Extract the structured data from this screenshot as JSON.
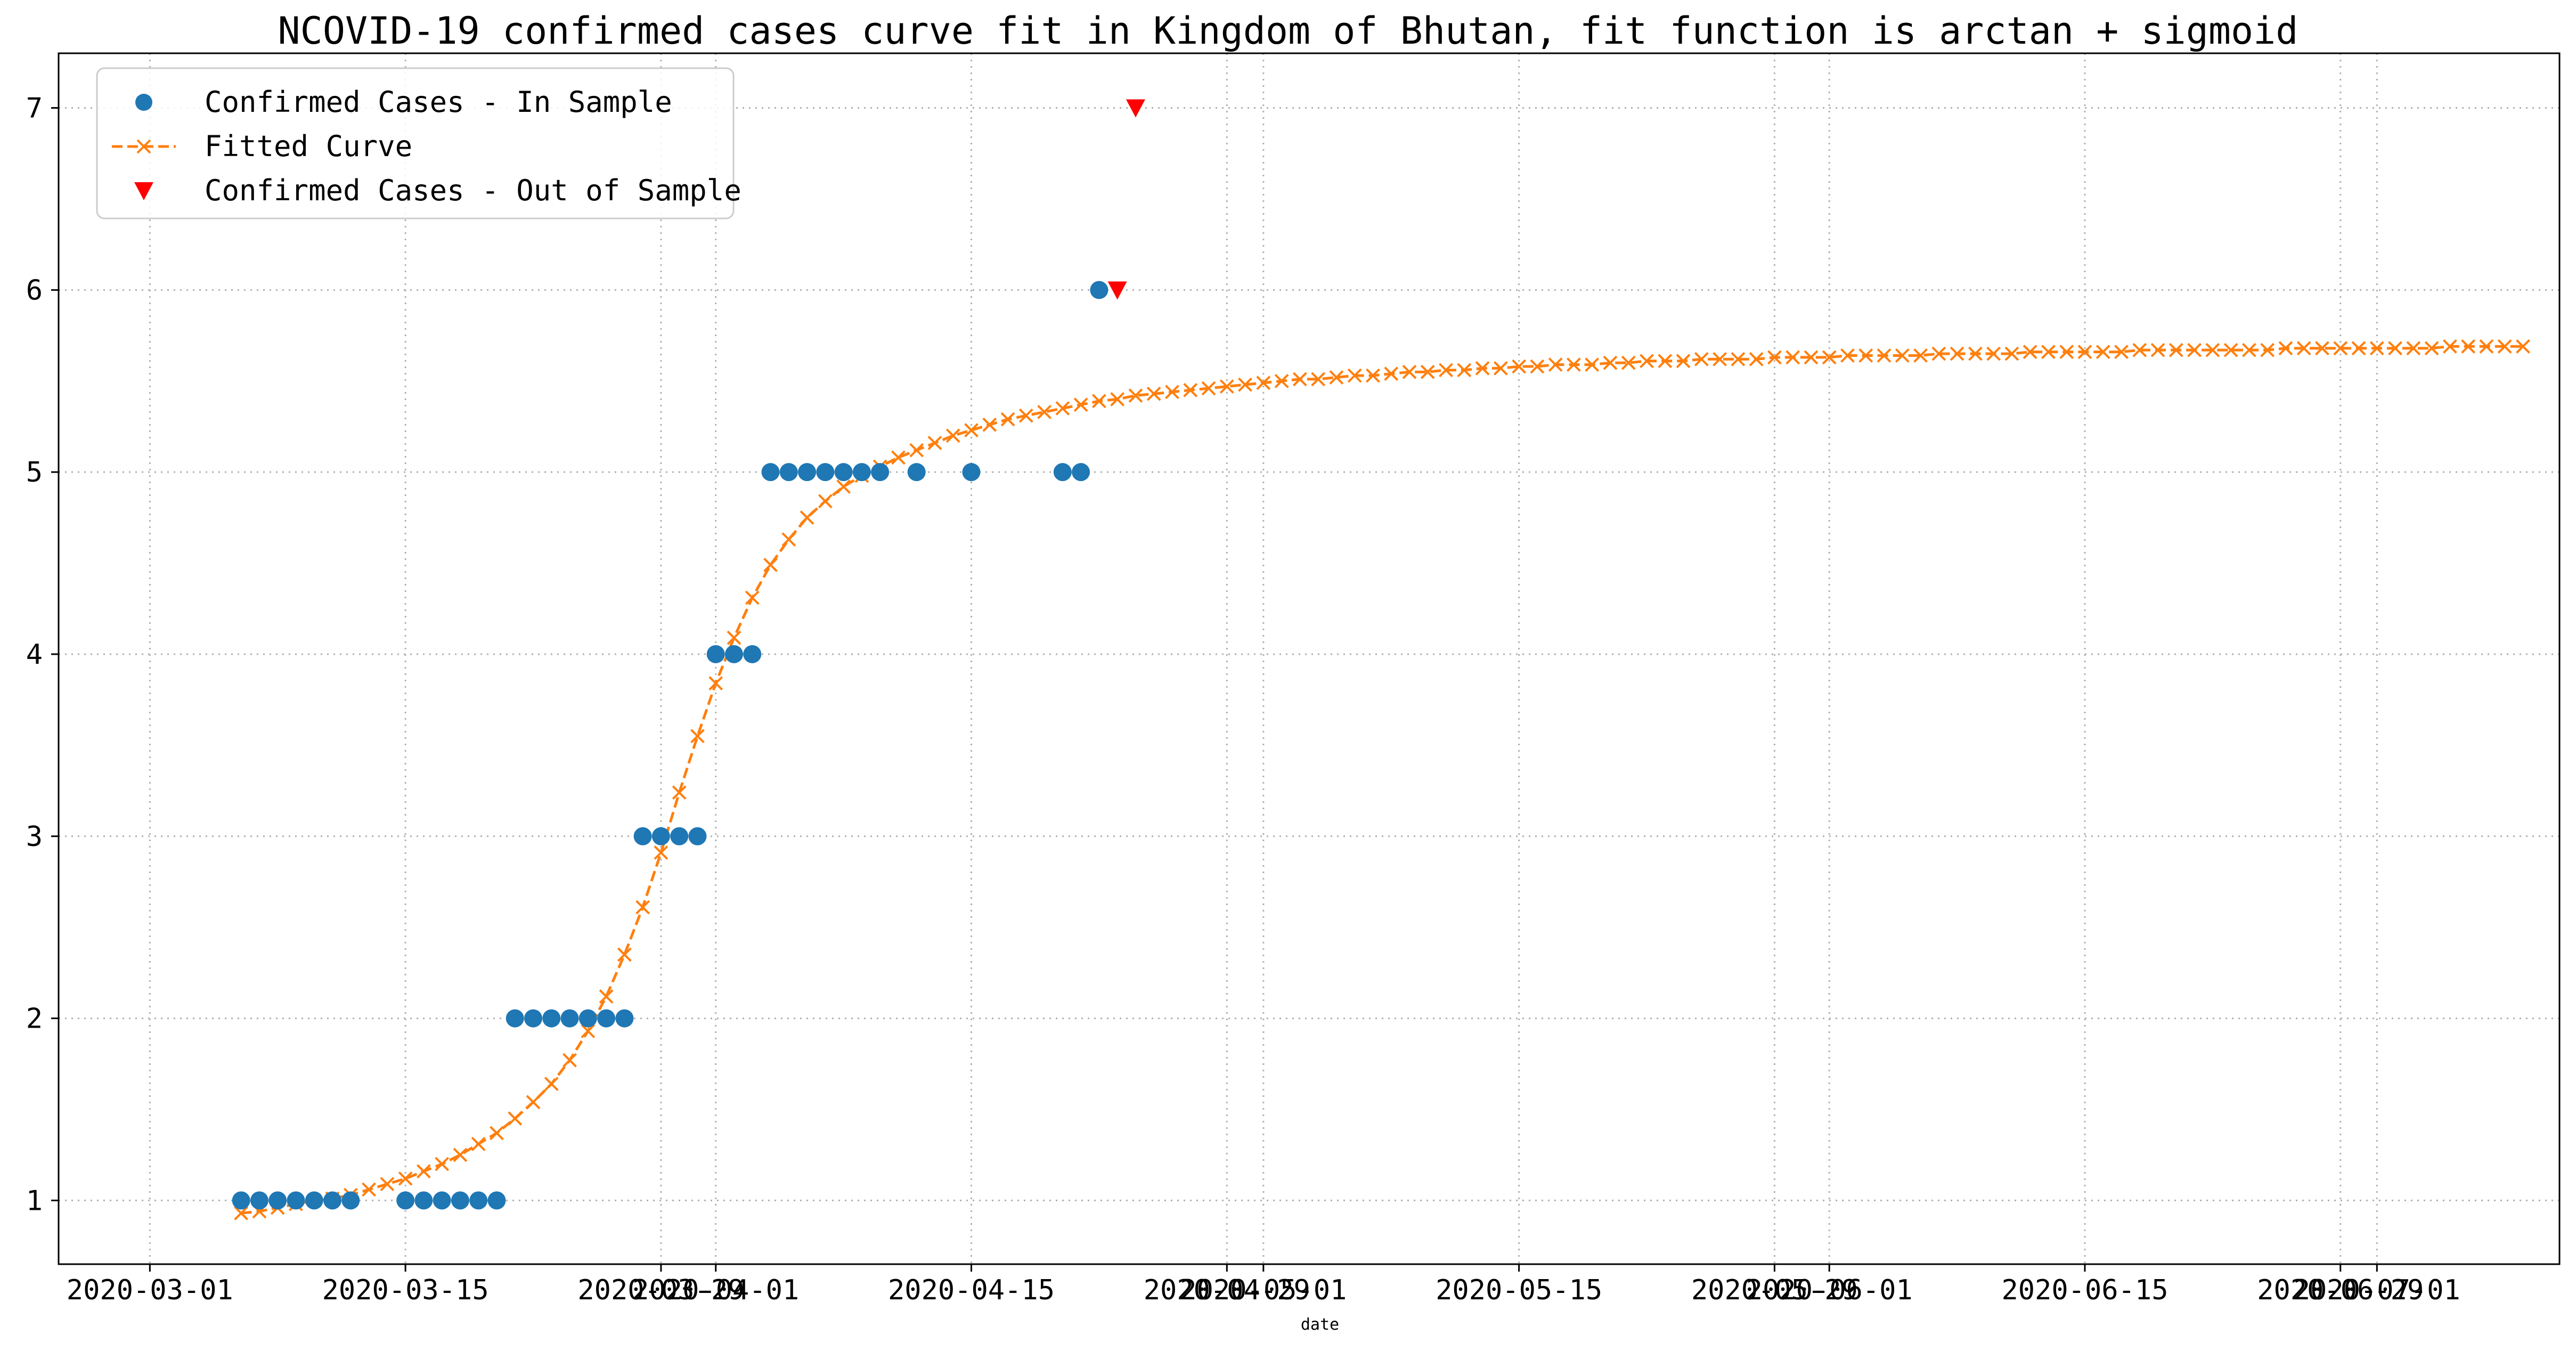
{
  "chart_data": {
    "type": "scatter",
    "title": "NCOVID-19 confirmed cases curve fit in Kingdom of Bhutan, fit function is arctan + sigmoid",
    "xlabel": "date",
    "ylabel": "",
    "x_axis_type": "date",
    "xlim": [
      "2020-02-25",
      "2020-07-11"
    ],
    "ylim": [
      0.65,
      7.3
    ],
    "grid": true,
    "legend_position": "top-left",
    "x_ticks": [
      "2020-03-01",
      "2020-03-15",
      "2020-03-29",
      "2020-04-01",
      "2020-04-15",
      "2020-04-29",
      "2020-05-01",
      "2020-05-15",
      "2020-05-29",
      "2020-06-01",
      "2020-06-15",
      "2020-06-29",
      "2020-07-01"
    ],
    "y_ticks": [
      1,
      2,
      3,
      4,
      5,
      6,
      7
    ],
    "series": [
      {
        "name": "Confirmed Cases - In Sample",
        "style": "markers",
        "marker": "circle",
        "color": "#1f77b4",
        "points": [
          [
            "2020-03-06",
            1
          ],
          [
            "2020-03-07",
            1
          ],
          [
            "2020-03-08",
            1
          ],
          [
            "2020-03-09",
            1
          ],
          [
            "2020-03-10",
            1
          ],
          [
            "2020-03-11",
            1
          ],
          [
            "2020-03-12",
            1
          ],
          [
            "2020-03-15",
            1
          ],
          [
            "2020-03-16",
            1
          ],
          [
            "2020-03-17",
            1
          ],
          [
            "2020-03-18",
            1
          ],
          [
            "2020-03-19",
            1
          ],
          [
            "2020-03-20",
            1
          ],
          [
            "2020-03-21",
            2
          ],
          [
            "2020-03-22",
            2
          ],
          [
            "2020-03-23",
            2
          ],
          [
            "2020-03-24",
            2
          ],
          [
            "2020-03-25",
            2
          ],
          [
            "2020-03-26",
            2
          ],
          [
            "2020-03-27",
            2
          ],
          [
            "2020-03-28",
            3
          ],
          [
            "2020-03-29",
            3
          ],
          [
            "2020-03-30",
            3
          ],
          [
            "2020-03-31",
            3
          ],
          [
            "2020-04-01",
            4
          ],
          [
            "2020-04-02",
            4
          ],
          [
            "2020-04-03",
            4
          ],
          [
            "2020-04-04",
            5
          ],
          [
            "2020-04-05",
            5
          ],
          [
            "2020-04-06",
            5
          ],
          [
            "2020-04-07",
            5
          ],
          [
            "2020-04-08",
            5
          ],
          [
            "2020-04-09",
            5
          ],
          [
            "2020-04-10",
            5
          ],
          [
            "2020-04-12",
            5
          ],
          [
            "2020-04-15",
            5
          ],
          [
            "2020-04-20",
            5
          ],
          [
            "2020-04-21",
            5
          ],
          [
            "2020-04-22",
            6
          ]
        ]
      },
      {
        "name": "Fitted Curve",
        "style": "dashed-line-x-markers",
        "color": "#ff7f0e",
        "start": "2020-03-06",
        "values": [
          0.93,
          0.94,
          0.96,
          0.98,
          1.0,
          1.01,
          1.03,
          1.06,
          1.09,
          1.12,
          1.16,
          1.2,
          1.25,
          1.31,
          1.37,
          1.45,
          1.54,
          1.64,
          1.77,
          1.93,
          2.12,
          2.35,
          2.61,
          2.91,
          3.24,
          3.55,
          3.84,
          4.09,
          4.31,
          4.49,
          4.63,
          4.75,
          4.84,
          4.92,
          4.98,
          5.03,
          5.08,
          5.12,
          5.16,
          5.2,
          5.23,
          5.26,
          5.29,
          5.31,
          5.33,
          5.35,
          5.37,
          5.39,
          5.4,
          5.42,
          5.43,
          5.44,
          5.45,
          5.46,
          5.47,
          5.48,
          5.49,
          5.5,
          5.51,
          5.51,
          5.52,
          5.53,
          5.53,
          5.54,
          5.55,
          5.55,
          5.56,
          5.56,
          5.57,
          5.57,
          5.58,
          5.58,
          5.59,
          5.59,
          5.59,
          5.6,
          5.6,
          5.61,
          5.61,
          5.61,
          5.62,
          5.62,
          5.62,
          5.62,
          5.63,
          5.63,
          5.63,
          5.63,
          5.64,
          5.64,
          5.64,
          5.64,
          5.64,
          5.65,
          5.65,
          5.65,
          5.65,
          5.65,
          5.66,
          5.66,
          5.66,
          5.66,
          5.66,
          5.66,
          5.67,
          5.67,
          5.67,
          5.67,
          5.67,
          5.67,
          5.67,
          5.67,
          5.68,
          5.68,
          5.68,
          5.68,
          5.68,
          5.68,
          5.68,
          5.68,
          5.68,
          5.69,
          5.69,
          5.69,
          5.69,
          5.69
        ]
      },
      {
        "name": "Confirmed Cases - Out of Sample",
        "style": "markers",
        "marker": "triangle-down",
        "color": "#ff0000",
        "points": [
          [
            "2020-04-23",
            6
          ],
          [
            "2020-04-24",
            7
          ]
        ]
      }
    ]
  }
}
